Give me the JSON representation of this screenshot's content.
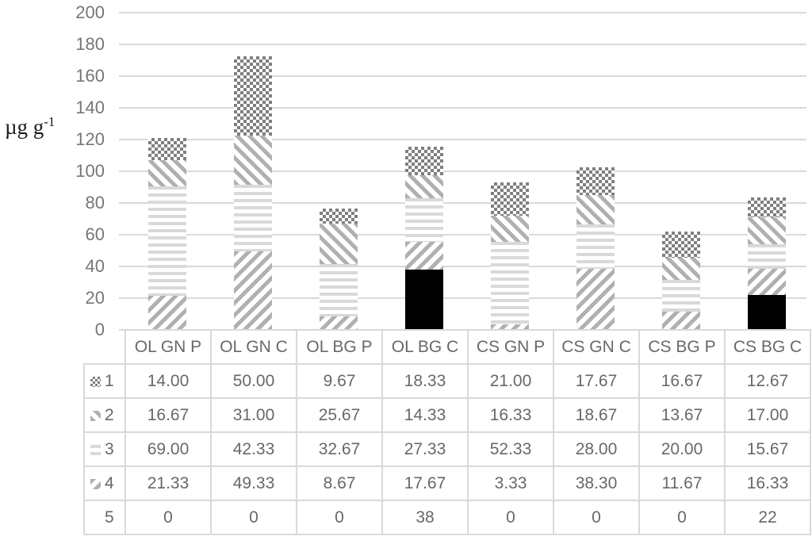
{
  "figure": {
    "y_axis_label": {
      "base": "µg g",
      "sup": "-1"
    }
  },
  "chart_data": {
    "type": "bar",
    "stacked": true,
    "title": "",
    "xlabel": "",
    "ylabel": "µg g⁻¹",
    "ylim": [
      0,
      200
    ],
    "ytick_step": 20,
    "yticks": [
      0,
      20,
      40,
      60,
      80,
      100,
      120,
      140,
      160,
      180,
      200
    ],
    "grid": true,
    "legend_position": "table-left-column",
    "categories": [
      "OL GN P",
      "OL GN C",
      "OL BG P",
      "OL BG C",
      "CS GN P",
      "CS GN C",
      "CS BG P",
      "CS BG C"
    ],
    "series": [
      {
        "name": "1",
        "pattern": "checker",
        "format": "2dp",
        "values": [
          14.0,
          50.0,
          9.67,
          18.33,
          21.0,
          17.67,
          16.67,
          12.67
        ]
      },
      {
        "name": "2",
        "pattern": "diag-backslash",
        "format": "2dp",
        "values": [
          16.67,
          31.0,
          25.67,
          14.33,
          16.33,
          18.67,
          13.67,
          17.0
        ]
      },
      {
        "name": "3",
        "pattern": "hlines",
        "format": "2dp",
        "values": [
          69.0,
          42.33,
          32.67,
          27.33,
          52.33,
          28.0,
          20.0,
          15.67
        ]
      },
      {
        "name": "4",
        "pattern": "diag-slash",
        "format": "2dp",
        "values": [
          21.33,
          49.33,
          8.67,
          17.67,
          3.33,
          38.3,
          11.67,
          16.33
        ]
      },
      {
        "name": "5",
        "pattern": "solid-black",
        "format": "int",
        "values": [
          0,
          0,
          0,
          38,
          0,
          0,
          0,
          22
        ]
      }
    ],
    "stack_order_bottom_to_top": [
      "5",
      "4",
      "3",
      "2",
      "1"
    ],
    "colors": {
      "series_1_checker": "#7f7f7f",
      "series_2_stripes": "#b0b0b0",
      "series_3_lines": "#d9d9d9",
      "series_4_stripes": "#b0b0b0",
      "series_5_solid": "#000000",
      "gridline": "#d9d9d9",
      "tick_text": "#767676",
      "table_text": "#686868",
      "table_border": "#d9d9d9"
    }
  }
}
